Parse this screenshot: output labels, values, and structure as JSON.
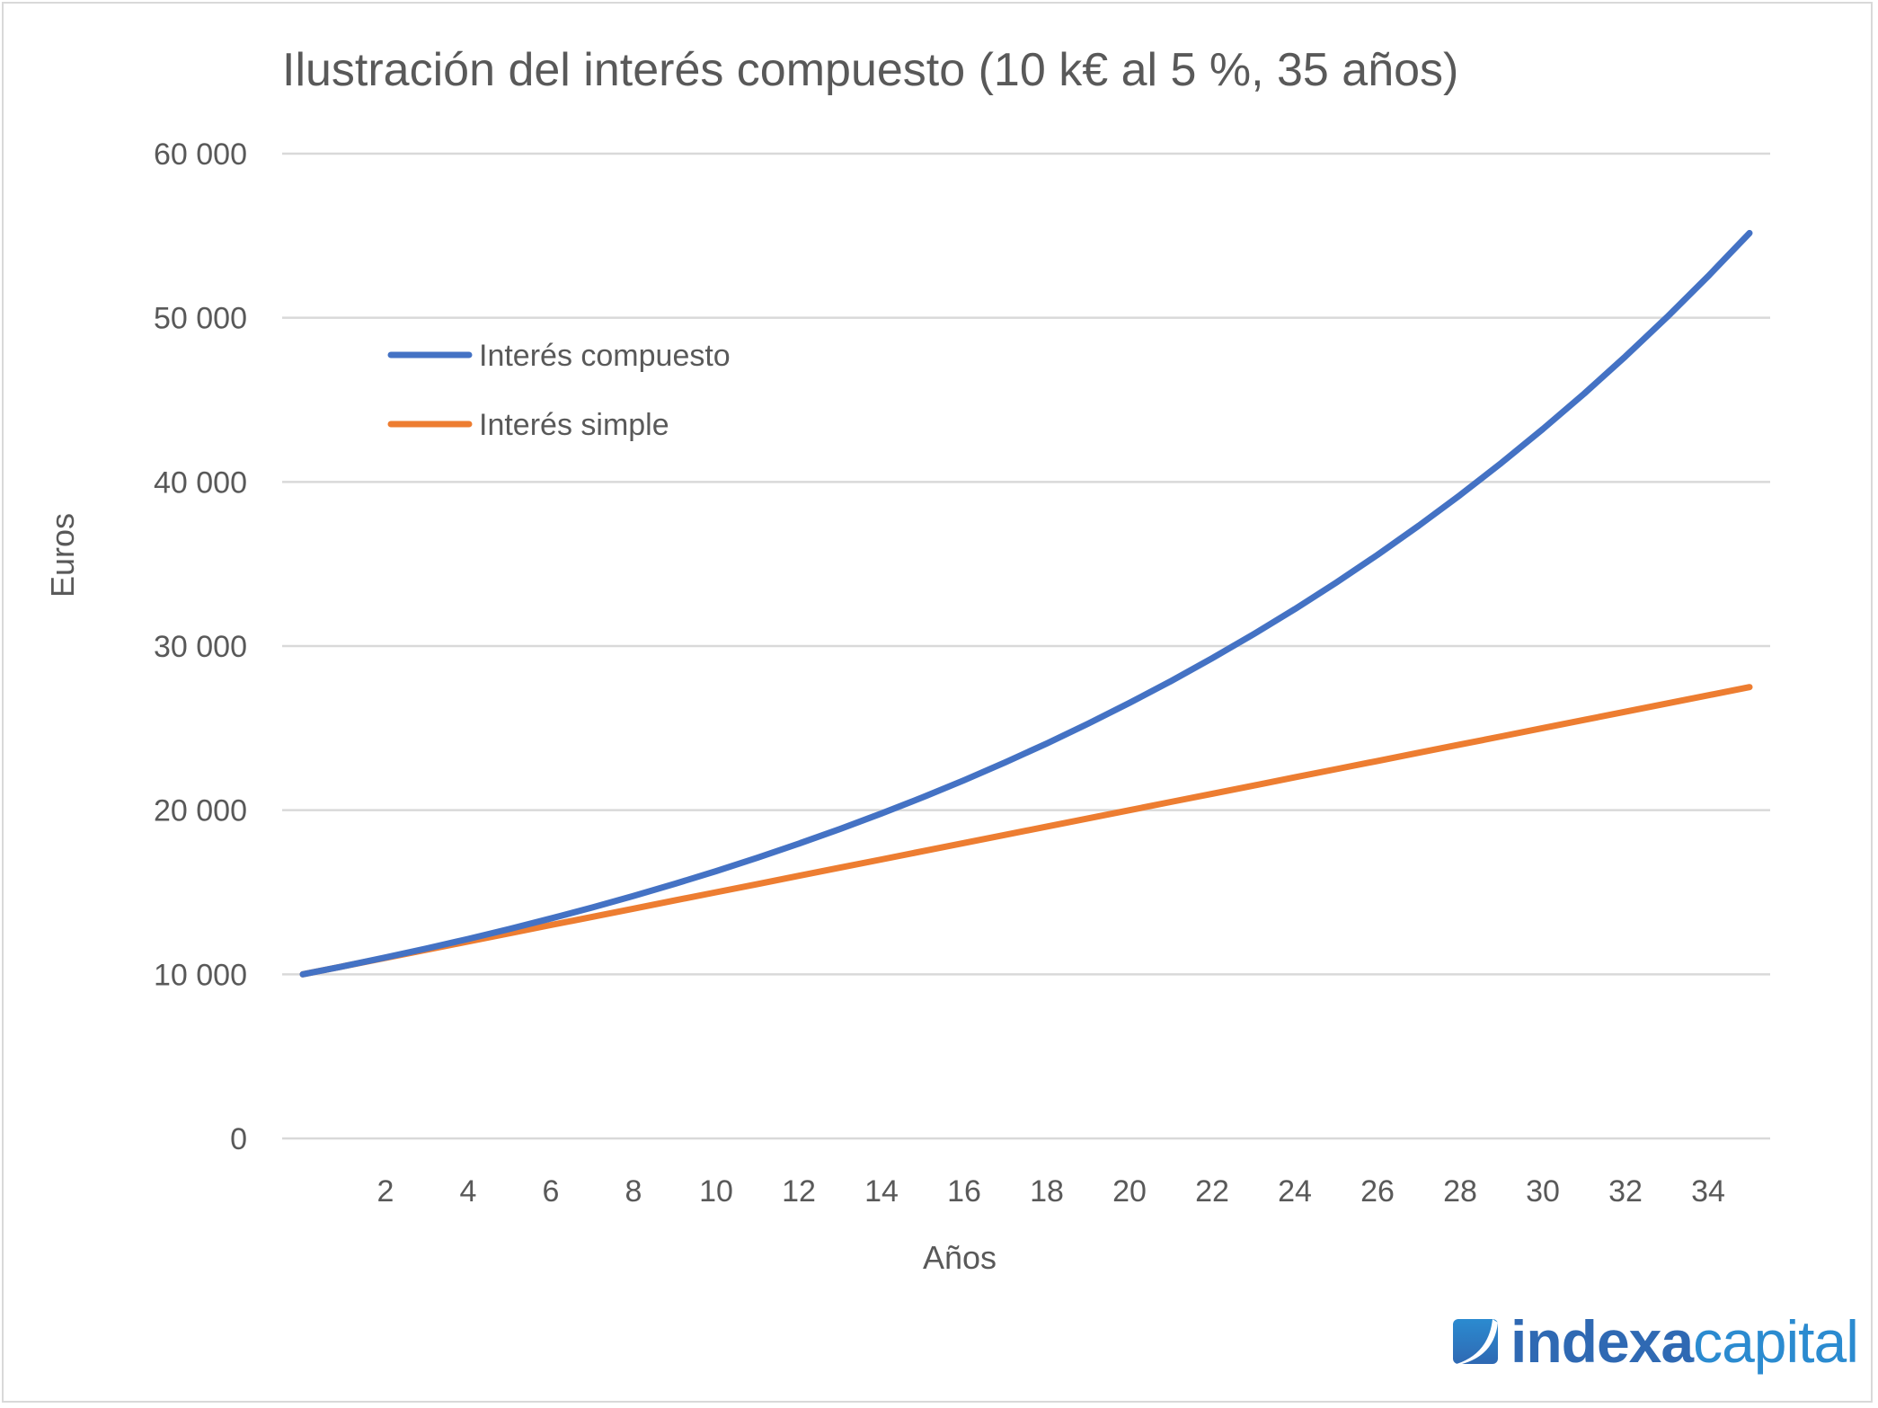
{
  "chart_data": {
    "type": "line",
    "title": "Ilustración del interés compuesto (10 k€ al 5 %, 35 años)",
    "xlabel": "Años",
    "ylabel": "Euros",
    "x": [
      0,
      1,
      2,
      3,
      4,
      5,
      6,
      7,
      8,
      9,
      10,
      11,
      12,
      13,
      14,
      15,
      16,
      17,
      18,
      19,
      20,
      21,
      22,
      23,
      24,
      25,
      26,
      27,
      28,
      29,
      30,
      31,
      32,
      33,
      34,
      35
    ],
    "x_tick_labels": [
      "2",
      "4",
      "6",
      "8",
      "10",
      "12",
      "14",
      "16",
      "18",
      "20",
      "22",
      "24",
      "26",
      "28",
      "30",
      "32",
      "34"
    ],
    "y_tick_labels": [
      "0",
      "10 000",
      "20 000",
      "30 000",
      "40 000",
      "50 000",
      "60 000"
    ],
    "ylim": [
      0,
      60000
    ],
    "grid": "horizontal",
    "legend_placement": "top-left",
    "series": [
      {
        "name": "Interés compuesto",
        "color": "#4472c4",
        "values": [
          10000,
          10500,
          11025,
          11576,
          12155,
          12763,
          13401,
          14071,
          14775,
          15513,
          16289,
          17103,
          17959,
          18856,
          19799,
          20789,
          21829,
          22920,
          24066,
          25270,
          26533,
          27860,
          29253,
          30715,
          32251,
          33864,
          35557,
          37335,
          39201,
          41161,
          43219,
          45380,
          47649,
          50032,
          52533,
          55160
        ]
      },
      {
        "name": "Interés simple",
        "color": "#ed7d31",
        "values": [
          10000,
          10500,
          11000,
          11500,
          12000,
          12500,
          13000,
          13500,
          14000,
          14500,
          15000,
          15500,
          16000,
          16500,
          17000,
          17500,
          18000,
          18500,
          19000,
          19500,
          20000,
          20500,
          21000,
          21500,
          22000,
          22500,
          23000,
          23500,
          24000,
          24500,
          25000,
          25500,
          26000,
          26500,
          27000,
          27500
        ]
      }
    ]
  },
  "logo": {
    "part1": "indexa",
    "part2": "capital"
  }
}
